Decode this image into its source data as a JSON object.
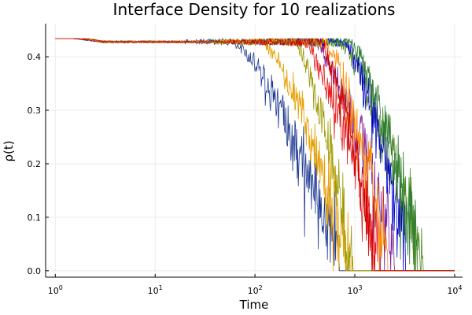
{
  "chart_data": {
    "type": "line",
    "title": "Interface Density for 10 realizations",
    "xlabel": "Time",
    "ylabel": "ρ(t)",
    "xscale": "log10",
    "xlim": [
      0.8,
      12000
    ],
    "ylim": [
      -0.012,
      0.462
    ],
    "xticks": [
      {
        "value": 1,
        "base": "10",
        "exp": "0"
      },
      {
        "value": 10,
        "base": "10",
        "exp": "1"
      },
      {
        "value": 100,
        "base": "10",
        "exp": "2"
      },
      {
        "value": 1000,
        "base": "10",
        "exp": "3"
      },
      {
        "value": 10000,
        "base": "10",
        "exp": "4"
      }
    ],
    "yticks": [
      {
        "value": 0.0,
        "label": "0.0"
      },
      {
        "value": 0.1,
        "label": "0.1"
      },
      {
        "value": 0.2,
        "label": "0.2"
      },
      {
        "value": 0.3,
        "label": "0.3"
      },
      {
        "value": 0.4,
        "label": "0.4"
      }
    ],
    "grid": true,
    "legend": "none",
    "series": [
      {
        "color": "#1f3a93",
        "start": 0.44,
        "plateau": 0.428,
        "noise_from": 20,
        "decline_from": 60,
        "extinction": 700,
        "seed": 11
      },
      {
        "color": "#e69f00",
        "start": 0.444,
        "plateau": 0.428,
        "noise_from": 40,
        "decline_from": 120,
        "extinction": 900,
        "seed": 23
      },
      {
        "color": "#4b8b1e",
        "start": 0.442,
        "plateau": 0.428,
        "noise_from": 30,
        "decline_from": 700,
        "extinction": 4800,
        "seed": 37
      },
      {
        "color": "#e41a1c",
        "start": 0.443,
        "plateau": 0.428,
        "noise_from": 50,
        "decline_from": 300,
        "extinction": 1800,
        "seed": 41
      },
      {
        "color": "#7b1fa2",
        "start": 0.441,
        "plateau": 0.428,
        "noise_from": 60,
        "decline_from": 400,
        "extinction": 2500,
        "seed": 53
      },
      {
        "color": "#0000cc",
        "start": 0.44,
        "plateau": 0.428,
        "noise_from": 80,
        "decline_from": 800,
        "extinction": 3200,
        "seed": 67
      },
      {
        "color": "#9a9a00",
        "start": 0.443,
        "plateau": 0.428,
        "noise_from": 70,
        "decline_from": 250,
        "extinction": 950,
        "seed": 71
      },
      {
        "color": "#2e7d32",
        "start": 0.442,
        "plateau": 0.428,
        "noise_from": 90,
        "decline_from": 900,
        "extinction": 4300,
        "seed": 83
      },
      {
        "color": "#ff8c00",
        "start": 0.445,
        "plateau": 0.428,
        "noise_from": 45,
        "decline_from": 500,
        "extinction": 2200,
        "seed": 97
      },
      {
        "color": "#d00000",
        "start": 0.441,
        "plateau": 0.428,
        "noise_from": 55,
        "decline_from": 450,
        "extinction": 1600,
        "seed": 101
      }
    ]
  }
}
